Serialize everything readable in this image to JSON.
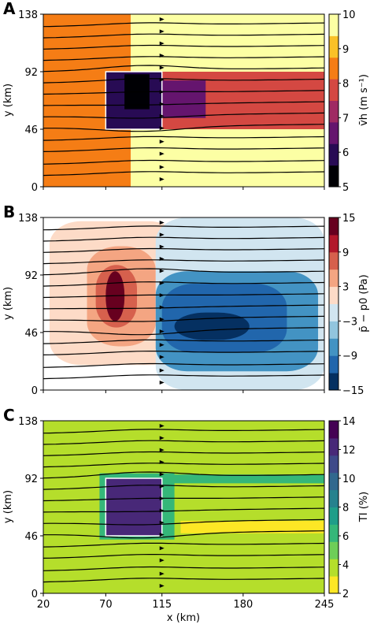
{
  "figure": {
    "panels": [
      "A",
      "B",
      "C"
    ],
    "shared_xlabel": "x (km)"
  },
  "chart_data": [
    {
      "type": "heatmap",
      "panel_label": "A",
      "title": "",
      "xlabel": "",
      "ylabel": "y (km)",
      "xlim": [
        20,
        245
      ],
      "ylim": [
        0,
        138
      ],
      "x_ticks": [
        "20",
        "70",
        "115",
        "180",
        "245"
      ],
      "x_tick_values": [
        20,
        70,
        115,
        180,
        245
      ],
      "y_ticks": [
        "0",
        "46",
        "92",
        "138"
      ],
      "y_tick_values": [
        0,
        46,
        92,
        138
      ],
      "show_x_tick_labels": false,
      "colorbar": {
        "label": "v̄h (m s⁻¹)",
        "min": 5,
        "max": 10,
        "ticks": [
          "5",
          "6",
          "7",
          "8",
          "9",
          "10"
        ],
        "tick_values": [
          5,
          6,
          7,
          8,
          9,
          10
        ],
        "colors": [
          "#000004",
          "#280b54",
          "#65156e",
          "#9f2a63",
          "#d44842",
          "#f57d15",
          "#fac127",
          "#fcffa4"
        ]
      },
      "regions": [
        {
          "name": "background_left",
          "value": 8.7,
          "x": [
            20,
            90
          ],
          "y": [
            0,
            138
          ]
        },
        {
          "name": "background_right",
          "value": 9.7,
          "x": [
            90,
            245
          ],
          "y": [
            0,
            138
          ]
        },
        {
          "name": "wake",
          "value": 7.5,
          "x": [
            115,
            245
          ],
          "y": [
            46,
            92
          ]
        },
        {
          "name": "inner_wake",
          "value": 6.8,
          "x": [
            115,
            150
          ],
          "y": [
            55,
            85
          ]
        },
        {
          "name": "farm",
          "value": 5.8,
          "x": [
            70,
            115
          ],
          "y": [
            46,
            92
          ]
        },
        {
          "name": "farm_core",
          "value": 5.2,
          "x": [
            85,
            105
          ],
          "y": [
            62,
            90
          ]
        }
      ],
      "farm_box": {
        "x": [
          70,
          115
        ],
        "y": [
          46,
          92
        ]
      },
      "streamlines_y_start": [
        9,
        18,
        28,
        37,
        47,
        56,
        65,
        74,
        83,
        92,
        101,
        110,
        119,
        128
      ]
    },
    {
      "type": "heatmap",
      "panel_label": "B",
      "title": "",
      "xlabel": "",
      "ylabel": "y (km)",
      "xlim": [
        20,
        245
      ],
      "ylim": [
        0,
        138
      ],
      "x_ticks": [
        "20",
        "70",
        "115",
        "180",
        "245"
      ],
      "x_tick_values": [
        20,
        70,
        115,
        180,
        245
      ],
      "y_ticks": [
        "0",
        "46",
        "92",
        "138"
      ],
      "y_tick_values": [
        0,
        46,
        92,
        138
      ],
      "show_x_tick_labels": false,
      "colorbar": {
        "label": "p̄ − p0 (Pa)",
        "min": -15,
        "max": 15,
        "ticks": [
          "−15",
          "−9",
          "−3",
          "3",
          "9",
          "15"
        ],
        "tick_values": [
          -15,
          -9,
          -3,
          3,
          9,
          15
        ],
        "colors": [
          "#053061",
          "#2166ac",
          "#4393c3",
          "#92c5de",
          "#d1e5f0",
          "#fddbc7",
          "#f4a582",
          "#d6604d",
          "#b2182b",
          "#67001f"
        ]
      },
      "regions": [
        {
          "name": "positive_halo",
          "value": 1,
          "x": [
            25,
            130
          ],
          "y": [
            20,
            135
          ]
        },
        {
          "name": "positive_mid",
          "value": 5,
          "x": [
            55,
            110
          ],
          "y": [
            35,
            115
          ]
        },
        {
          "name": "positive_high",
          "value": 8,
          "x": [
            62,
            95
          ],
          "y": [
            50,
            100
          ]
        },
        {
          "name": "positive_peak",
          "value": 12,
          "x": [
            70,
            85
          ],
          "y": [
            55,
            95
          ]
        },
        {
          "name": "negative_halo",
          "value": -2,
          "x": [
            110,
            245
          ],
          "y": [
            0,
            138
          ]
        },
        {
          "name": "negative_mid",
          "value": -7,
          "x": [
            110,
            240
          ],
          "y": [
            15,
            95
          ]
        },
        {
          "name": "negative_high",
          "value": -10,
          "x": [
            115,
            215
          ],
          "y": [
            30,
            85
          ]
        },
        {
          "name": "negative_peak",
          "value": -14,
          "x": [
            125,
            185
          ],
          "y": [
            40,
            62
          ]
        }
      ],
      "streamlines_y_start": [
        9,
        18,
        28,
        37,
        47,
        56,
        65,
        74,
        83,
        92,
        101,
        110,
        119,
        128
      ]
    },
    {
      "type": "heatmap",
      "panel_label": "C",
      "title": "",
      "xlabel": "x (km)",
      "ylabel": "y (km)",
      "xlim": [
        20,
        245
      ],
      "ylim": [
        0,
        138
      ],
      "x_ticks": [
        "20",
        "70",
        "115",
        "180",
        "245"
      ],
      "x_tick_values": [
        20,
        70,
        115,
        180,
        245
      ],
      "y_ticks": [
        "0",
        "46",
        "92",
        "138"
      ],
      "y_tick_values": [
        0,
        46,
        92,
        138
      ],
      "show_x_tick_labels": true,
      "colorbar": {
        "label": "TI (%)",
        "min": 2,
        "max": 14,
        "ticks": [
          "2",
          "4",
          "6",
          "8",
          "10",
          "12",
          "14"
        ],
        "tick_values": [
          2,
          4,
          6,
          8,
          10,
          12,
          14
        ],
        "colors": [
          "#fde725",
          "#b5de2b",
          "#6ece58",
          "#35b779",
          "#1f9e89",
          "#26828e",
          "#31688e",
          "#3e4989",
          "#482878",
          "#440154"
        ]
      },
      "regions": [
        {
          "name": "background",
          "value": 3.5,
          "x": [
            20,
            245
          ],
          "y": [
            0,
            138
          ]
        },
        {
          "name": "farm_edge",
          "value": 6,
          "x": [
            65,
            125
          ],
          "y": [
            43,
            96
          ]
        },
        {
          "name": "farm",
          "value": 12,
          "x": [
            70,
            115
          ],
          "y": [
            46,
            92
          ]
        },
        {
          "name": "upper_wake_edge",
          "value": 6,
          "x": [
            115,
            245
          ],
          "y": [
            88,
            95
          ]
        },
        {
          "name": "lower_wake_low",
          "value": 2.5,
          "x": [
            130,
            245
          ],
          "y": [
            48,
            58
          ]
        }
      ],
      "farm_box": {
        "x": [
          70,
          115
        ],
        "y": [
          46,
          92
        ]
      },
      "streamlines_y_start": [
        9,
        18,
        28,
        37,
        47,
        56,
        65,
        74,
        83,
        92,
        101,
        110,
        119,
        128
      ]
    }
  ]
}
